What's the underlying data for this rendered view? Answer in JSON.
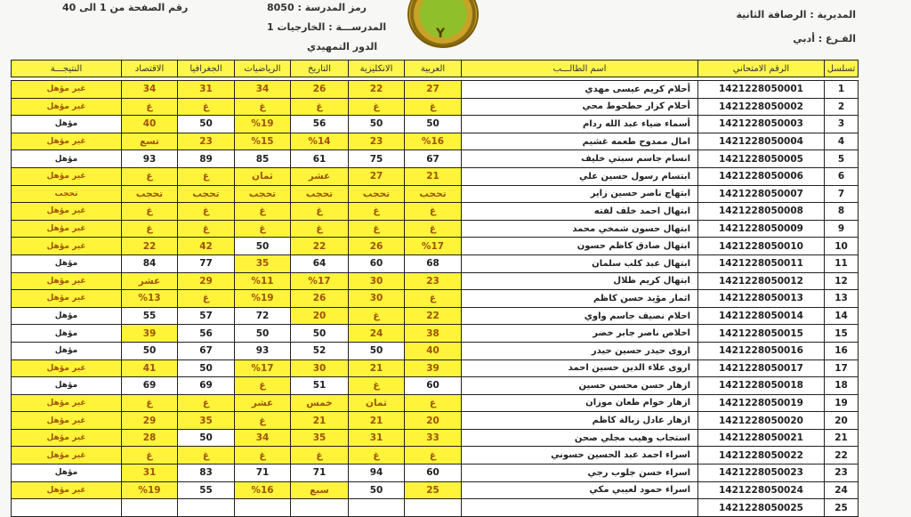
{
  "header": {
    "page_range": "رقم الصفحة من 1 الى 40",
    "school_code_label": "رمز المدرسة :",
    "school_code": "8050",
    "school_label": "المدرســـة :",
    "school": "الخارجيات 1",
    "round": "الدور التمهيدي",
    "directorate_label": "المديرية :",
    "directorate": "الرصافة الثانية",
    "branch_label": "الفـرع :",
    "branch": "أدبي",
    "logo_text": "Y"
  },
  "columns": [
    "تسلسل",
    "الرقم الامتحاني",
    "اسم الطالـــب",
    "العربية",
    "الانكليزية",
    "التاريخ",
    "الرياضيات",
    "الجغرافيا",
    "الاقتصاد",
    "النتيجـــة"
  ],
  "colors": {
    "highlight": "#fff43a",
    "fail_text": "#a0520a"
  },
  "rows": [
    [
      "1",
      "1421228050001",
      "أحلام كريم عيسى مهدي",
      "27",
      "22",
      "26",
      "34",
      "31",
      "34",
      "غير مؤهل"
    ],
    [
      "2",
      "1421228050002",
      "أحلام كزار حطحوط محي",
      "غ",
      "غ",
      "غ",
      "غ",
      "غ",
      "غ",
      "غير مؤهل"
    ],
    [
      "3",
      "1421228050003",
      "أسماء ضياء عبد الله ردام",
      "50",
      "50",
      "56",
      "%19",
      "50",
      "40",
      "مؤهل"
    ],
    [
      "4",
      "1421228050004",
      "امال ممدوح طعمه غشيم",
      "%16",
      "23",
      "%14",
      "%15",
      "23",
      "تسع",
      "غير مؤهل"
    ],
    [
      "5",
      "1421228050005",
      "انسام جاسم سبتي خليف",
      "67",
      "75",
      "61",
      "85",
      "89",
      "93",
      "مؤهل"
    ],
    [
      "6",
      "1421228050006",
      "ابتسام رسول حسين علي",
      "21",
      "27",
      "عشر",
      "ثمان",
      "غ",
      "غ",
      "غير مؤهل"
    ],
    [
      "7",
      "1421228050007",
      "ابتهاج ناصر حسين زاير",
      "تحجب",
      "تحجب",
      "تحجب",
      "تحجب",
      "تحجب",
      "تحجب",
      "تحجب"
    ],
    [
      "8",
      "1421228050008",
      "ابتهال احمد خلف لفته",
      "غ",
      "غ",
      "غ",
      "غ",
      "غ",
      "غ",
      "غير مؤهل"
    ],
    [
      "9",
      "1421228050009",
      "ابتهال حسون شمخي محمد",
      "غ",
      "غ",
      "غ",
      "غ",
      "غ",
      "غ",
      "غير مؤهل"
    ],
    [
      "10",
      "1421228050010",
      "ابتهال صادق كاظم حسون",
      "%17",
      "26",
      "22",
      "50",
      "42",
      "22",
      "غير مؤهل"
    ],
    [
      "11",
      "1421228050011",
      "ابتهال عبد كلب سلمان",
      "68",
      "60",
      "64",
      "35",
      "77",
      "84",
      "مؤهل"
    ],
    [
      "12",
      "1421228050012",
      "ابتهال كريم ظلال",
      "23",
      "30",
      "%17",
      "%11",
      "29",
      "عشر",
      "غير مؤهل"
    ],
    [
      "13",
      "1421228050013",
      "اثمار مؤيد حسن كاظم",
      "غ",
      "30",
      "26",
      "%19",
      "غ",
      "%13",
      "غير مؤهل"
    ],
    [
      "14",
      "1421228050014",
      "احلام نصيف جاسم واوي",
      "22",
      "غ",
      "20",
      "72",
      "57",
      "55",
      "مؤهل"
    ],
    [
      "15",
      "1421228050015",
      "اخلاص ناصر جابر خضر",
      "38",
      "24",
      "50",
      "50",
      "56",
      "39",
      "مؤهل"
    ],
    [
      "16",
      "1421228050016",
      "اروى حيدر حسين حيدر",
      "40",
      "50",
      "52",
      "93",
      "67",
      "50",
      "مؤهل"
    ],
    [
      "17",
      "1421228050017",
      "اروى علاء الدين حسين احمد",
      "39",
      "21",
      "30",
      "%17",
      "50",
      "41",
      "غير مؤهل"
    ],
    [
      "18",
      "1421228050018",
      "ازهار حسن محسن حسين",
      "60",
      "غ",
      "51",
      "غ",
      "69",
      "69",
      "مؤهل"
    ],
    [
      "19",
      "1421228050019",
      "ازهار خوام طعان موزان",
      "غ",
      "ثمان",
      "خمس",
      "عشر",
      "غ",
      "غ",
      "غير مؤهل"
    ],
    [
      "20",
      "1421228050020",
      "ازهار عادل زبالة كاظم",
      "20",
      "21",
      "21",
      "غ",
      "35",
      "29",
      "غير مؤهل"
    ],
    [
      "21",
      "1421228050021",
      "استجاب وهيب مجلي صحن",
      "33",
      "31",
      "35",
      "34",
      "50",
      "28",
      "غير مؤهل"
    ],
    [
      "22",
      "1421228050022",
      "اسراء احمد عبد الحسين حسوني",
      "غ",
      "غ",
      "غ",
      "غ",
      "غ",
      "غ",
      "غير مؤهل"
    ],
    [
      "23",
      "1421228050023",
      "اسراء حسن جلوب رجي",
      "60",
      "94",
      "71",
      "71",
      "83",
      "31",
      "مؤهل"
    ],
    [
      "24",
      "1421228050024",
      "اسراء حمود لعيبي مكي",
      "25",
      "50",
      "سبع",
      "%16",
      "55",
      "%19",
      "غير مؤهل"
    ],
    [
      "25",
      "1421228050025",
      "",
      "",
      "",
      "",
      "",
      "",
      "",
      ""
    ]
  ]
}
